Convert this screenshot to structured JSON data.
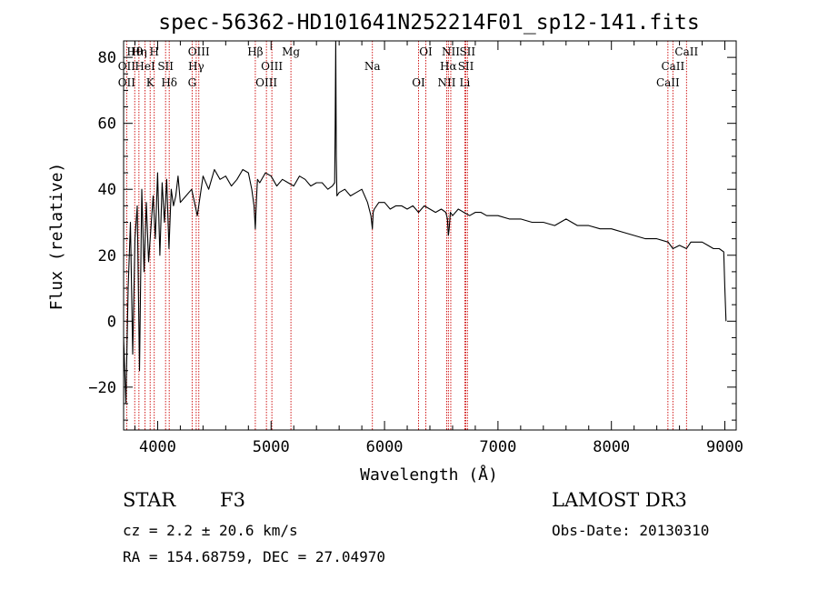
{
  "chart_data": {
    "type": "line",
    "title": "spec-56362-HD101641N252214F01_sp12-141.fits",
    "xlabel": "Wavelength (Å)",
    "ylabel": "Flux (relative)",
    "xlim": [
      3700,
      9100
    ],
    "ylim": [
      -33,
      85
    ],
    "xticks": [
      4000,
      5000,
      6000,
      7000,
      8000,
      9000
    ],
    "yticks": [
      -20,
      0,
      20,
      40,
      60,
      80
    ],
    "series": [
      {
        "name": "flux",
        "x": [
          3700,
          3720,
          3740,
          3760,
          3780,
          3800,
          3820,
          3840,
          3860,
          3880,
          3900,
          3920,
          3940,
          3960,
          3980,
          4000,
          4020,
          4040,
          4060,
          4080,
          4100,
          4120,
          4140,
          4160,
          4180,
          4200,
          4250,
          4300,
          4350,
          4400,
          4450,
          4500,
          4550,
          4600,
          4650,
          4700,
          4750,
          4800,
          4830,
          4850,
          4861,
          4870,
          4880,
          4900,
          4950,
          5000,
          5050,
          5100,
          5150,
          5200,
          5250,
          5300,
          5350,
          5400,
          5450,
          5500,
          5540,
          5560,
          5565,
          5570,
          5575,
          5580,
          5600,
          5650,
          5700,
          5750,
          5800,
          5850,
          5880,
          5893,
          5900,
          5910,
          5950,
          6000,
          6050,
          6100,
          6150,
          6200,
          6250,
          6300,
          6350,
          6400,
          6450,
          6500,
          6540,
          6555,
          6563,
          6570,
          6580,
          6600,
          6650,
          6700,
          6750,
          6800,
          6850,
          6900,
          6950,
          7000,
          7100,
          7200,
          7300,
          7400,
          7500,
          7600,
          7700,
          7800,
          7900,
          8000,
          8100,
          8200,
          8300,
          8400,
          8500,
          8542,
          8600,
          8662,
          8700,
          8800,
          8850,
          8900,
          8950,
          8990,
          9000,
          9010
        ],
        "y": [
          -5,
          -25,
          10,
          30,
          -10,
          25,
          35,
          -15,
          40,
          15,
          36,
          18,
          28,
          38,
          25,
          45,
          20,
          42,
          30,
          43,
          22,
          40,
          35,
          38,
          44,
          36,
          38,
          40,
          32,
          44,
          40,
          46,
          43,
          44,
          41,
          43,
          46,
          45,
          40,
          35,
          28,
          36,
          43,
          42,
          45,
          44,
          41,
          43,
          42,
          41,
          44,
          43,
          41,
          42,
          42,
          40,
          41,
          42,
          60,
          85,
          50,
          38,
          39,
          40,
          38,
          39,
          40,
          36,
          32,
          28,
          33,
          34,
          36,
          36,
          34,
          35,
          35,
          34,
          35,
          33,
          35,
          34,
          33,
          34,
          33,
          31,
          26,
          28,
          33,
          32,
          34,
          33,
          32,
          33,
          33,
          32,
          32,
          32,
          31,
          31,
          30,
          30,
          29,
          31,
          29,
          29,
          28,
          28,
          27,
          26,
          25,
          25,
          24,
          22,
          23,
          22,
          24,
          24,
          23,
          22,
          22,
          21,
          10,
          0
        ]
      }
    ],
    "line_labels": [
      {
        "text": "Hθ",
        "x": 3798
      },
      {
        "text": "OII",
        "x": 3727
      },
      {
        "text": "OII",
        "x": 3727
      },
      {
        "text": "Hη",
        "x": 3835
      },
      {
        "text": "HeI",
        "x": 3889
      },
      {
        "text": "K",
        "x": 3934
      },
      {
        "text": "H",
        "x": 3970
      },
      {
        "text": "SII",
        "x": 4070
      },
      {
        "text": "Hδ",
        "x": 4102
      },
      {
        "text": "OIII",
        "x": 4363
      },
      {
        "text": "Hγ",
        "x": 4340
      },
      {
        "text": "G",
        "x": 4304
      },
      {
        "text": "Hβ",
        "x": 4861
      },
      {
        "text": "OIII",
        "x": 5007
      },
      {
        "text": "OIII",
        "x": 4959
      },
      {
        "text": "Mg",
        "x": 5175
      },
      {
        "text": "Na",
        "x": 5893
      },
      {
        "text": "OI",
        "x": 6300
      },
      {
        "text": "OI",
        "x": 6364
      },
      {
        "text": "Hα",
        "x": 6563
      },
      {
        "text": "NII",
        "x": 6548
      },
      {
        "text": "NII",
        "x": 6584
      },
      {
        "text": "SII",
        "x": 6717
      },
      {
        "text": "Li",
        "x": 6708
      },
      {
        "text": "SII",
        "x": 6731
      },
      {
        "text": "CaII",
        "x": 8542
      },
      {
        "text": "CaII",
        "x": 8498
      },
      {
        "text": "CaII",
        "x": 8662
      }
    ],
    "line_marker_color": "#cc0000"
  },
  "info": {
    "object_class": "STAR",
    "subclass": "F3",
    "survey": "LAMOST DR3",
    "redshift": "cz = 2.2 ± 20.6 km/s",
    "obs_date": "Obs-Date: 20130310",
    "coords": "RA = 154.68759, DEC =  27.04970"
  }
}
